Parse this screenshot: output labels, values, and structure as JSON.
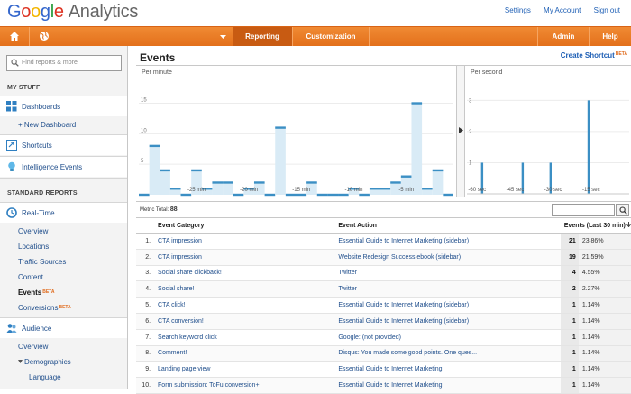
{
  "header": {
    "brand_letters": [
      "G",
      "o",
      "o",
      "g",
      "l",
      "e"
    ],
    "product": "Analytics",
    "links": [
      "Settings",
      "My Account",
      "Sign out"
    ]
  },
  "nav": {
    "reporting": "Reporting",
    "customization": "Customization",
    "admin": "Admin",
    "help": "Help"
  },
  "sidebar": {
    "search_placeholder": "Find reports & more",
    "my_stuff": "MY STUFF",
    "dashboards": "Dashboards",
    "new_dashboard": "+ New Dashboard",
    "shortcuts": "Shortcuts",
    "intelligence": "Intelligence Events",
    "standard_reports": "STANDARD REPORTS",
    "realtime": "Real-Time",
    "rt_items": [
      "Overview",
      "Locations",
      "Traffic Sources",
      "Content",
      "Events",
      "Conversions"
    ],
    "beta": "BETA",
    "audience": "Audience",
    "aud_items": [
      "Overview",
      "Demographics",
      "Language"
    ]
  },
  "main": {
    "title": "Events",
    "shortcut": "Create Shortcut",
    "shortcut_beta": "BETA",
    "per_minute": "Per minute",
    "per_second": "Per second",
    "metric_label": "Metric Total:",
    "metric_total": "88",
    "columns": [
      "Event Category",
      "Event Action",
      "Events (Last 30 min)"
    ]
  },
  "colors": {
    "accent": "#e3701b",
    "link": "#1e5fb5",
    "bar": "#3b8fc4",
    "bar_fill": "#d9ebf6"
  },
  "chart_data": [
    {
      "type": "area",
      "title": "Per minute",
      "x_tick_labels": [
        "-25 min",
        "-20 min",
        "-15 min",
        "-10 min",
        "-5 min"
      ],
      "y_tick_labels": [
        "15",
        "10",
        "5"
      ],
      "ylim": [
        0,
        17
      ],
      "values": [
        0,
        8,
        4,
        1,
        0,
        4,
        1,
        2,
        2,
        0,
        1,
        2,
        0,
        11,
        0,
        0,
        2,
        0,
        0,
        0,
        1,
        0,
        1,
        1,
        2,
        3,
        15,
        1,
        4,
        0
      ]
    },
    {
      "type": "bar",
      "title": "Per second",
      "x_tick_labels": [
        "-60 sec",
        "-45 sec",
        "-30 sec",
        "-15 sec"
      ],
      "y_tick_labels": [
        "3",
        "2",
        "1"
      ],
      "ylim": [
        0,
        3.3
      ],
      "bars": [
        {
          "sec": -58,
          "value": 1
        },
        {
          "sec": -42,
          "value": 1
        },
        {
          "sec": -31,
          "value": 1
        },
        {
          "sec": -16,
          "value": 3
        }
      ]
    }
  ],
  "rows": [
    {
      "idx": "1.",
      "category": "CTA impression",
      "action": "Essential Guide to Internet Marketing (sidebar)",
      "count": "21",
      "pct": "23.86%"
    },
    {
      "idx": "2.",
      "category": "CTA impression",
      "action": "Website Redesign Success ebook (sidebar)",
      "count": "19",
      "pct": "21.59%"
    },
    {
      "idx": "3.",
      "category": "Social share clickback!",
      "action": "Twitter",
      "count": "4",
      "pct": "4.55%"
    },
    {
      "idx": "4.",
      "category": "Social share!",
      "action": "Twitter",
      "count": "2",
      "pct": "2.27%"
    },
    {
      "idx": "5.",
      "category": "CTA click!",
      "action": "Essential Guide to Internet Marketing (sidebar)",
      "count": "1",
      "pct": "1.14%"
    },
    {
      "idx": "6.",
      "category": "CTA conversion!",
      "action": "Essential Guide to Internet Marketing (sidebar)",
      "count": "1",
      "pct": "1.14%"
    },
    {
      "idx": "7.",
      "category": "Search keyword click",
      "action": "Google: (not provided)",
      "count": "1",
      "pct": "1.14%"
    },
    {
      "idx": "8.",
      "category": "Comment!",
      "action": "Disqus: You made some good points. One ques...",
      "count": "1",
      "pct": "1.14%"
    },
    {
      "idx": "9.",
      "category": "Landing page view",
      "action": "Essential Guide to Internet Marketing",
      "count": "1",
      "pct": "1.14%"
    },
    {
      "idx": "10.",
      "category": "Form submission: ToFu conversion+",
      "action": "Essential Guide to Internet Marketing",
      "count": "1",
      "pct": "1.14%"
    }
  ]
}
